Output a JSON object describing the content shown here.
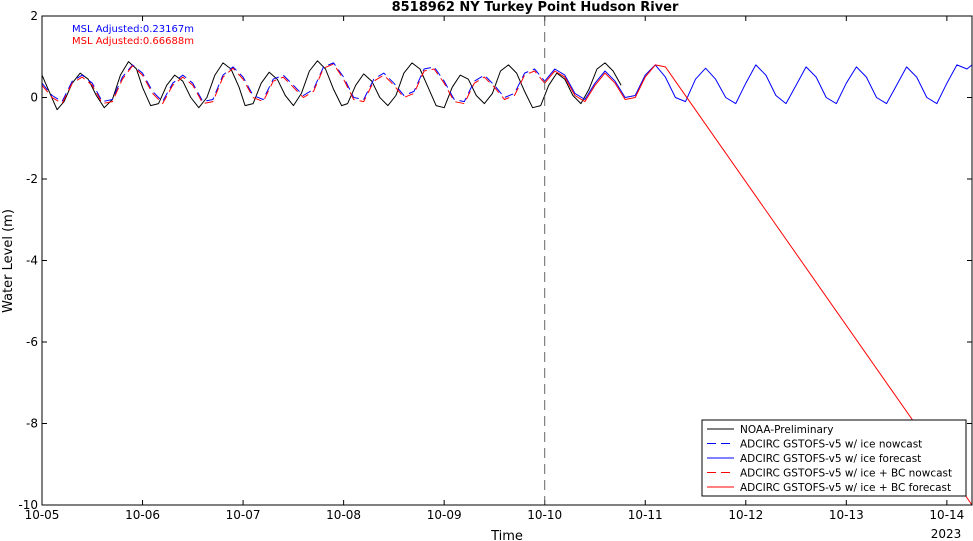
{
  "chart_data": {
    "type": "line",
    "title": "8518962 NY Turkey Point Hudson River",
    "xlabel": "Time",
    "ylabel": "Water Level (m)",
    "xlim": [
      0,
      9.25
    ],
    "ylim": [
      -10,
      2
    ],
    "x_ticks": [
      {
        "x": 0,
        "label": "10-05"
      },
      {
        "x": 1,
        "label": "10-06"
      },
      {
        "x": 2,
        "label": "10-07"
      },
      {
        "x": 3,
        "label": "10-08"
      },
      {
        "x": 4,
        "label": "10-09"
      },
      {
        "x": 5,
        "label": "10-10"
      },
      {
        "x": 6,
        "label": "10-11"
      },
      {
        "x": 7,
        "label": "10-12"
      },
      {
        "x": 8,
        "label": "10-13"
      },
      {
        "x": 9,
        "label": "10-14"
      }
    ],
    "x_year_label": "2023",
    "y_ticks": [
      2,
      0,
      -2,
      -4,
      -6,
      -8,
      -10
    ],
    "nowcast_divider_x": 5,
    "annotations": [
      {
        "text": "MSL Adjusted:0.23167m",
        "color": "#0000ff"
      },
      {
        "text": "MSL Adjusted:0.66688m",
        "color": "#ff0000"
      }
    ],
    "legend_position": "bottom-right",
    "series": [
      {
        "name": "NOAA-Preliminary",
        "color": "#000000",
        "dash": "solid",
        "x": [
          0.0,
          0.08,
          0.15,
          0.22,
          0.3,
          0.38,
          0.46,
          0.54,
          0.62,
          0.7,
          0.78,
          0.86,
          0.94,
          1.0,
          1.08,
          1.16,
          1.24,
          1.32,
          1.4,
          1.48,
          1.56,
          1.64,
          1.72,
          1.8,
          1.88,
          1.96,
          2.02,
          2.1,
          2.18,
          2.26,
          2.34,
          2.42,
          2.5,
          2.58,
          2.66,
          2.74,
          2.82,
          2.9,
          2.98,
          3.04,
          3.12,
          3.2,
          3.28,
          3.36,
          3.44,
          3.52,
          3.6,
          3.68,
          3.76,
          3.84,
          3.92,
          4.0,
          4.08,
          4.16,
          4.24,
          4.32,
          4.4,
          4.48,
          4.56,
          4.64,
          4.72,
          4.8,
          4.88,
          4.96,
          5.04,
          5.12,
          5.2,
          5.28,
          5.36,
          5.44,
          5.52,
          5.6,
          5.68,
          5.76
        ],
        "y": [
          0.55,
          0.1,
          -0.3,
          -0.1,
          0.35,
          0.6,
          0.45,
          0.05,
          -0.25,
          -0.05,
          0.55,
          0.88,
          0.7,
          0.25,
          -0.2,
          -0.15,
          0.3,
          0.55,
          0.4,
          0.0,
          -0.25,
          0.0,
          0.55,
          0.85,
          0.7,
          0.25,
          -0.2,
          -0.15,
          0.35,
          0.62,
          0.45,
          0.05,
          -0.2,
          0.1,
          0.65,
          0.9,
          0.7,
          0.2,
          -0.2,
          -0.15,
          0.3,
          0.58,
          0.4,
          0.0,
          -0.2,
          0.05,
          0.6,
          0.85,
          0.7,
          0.25,
          -0.2,
          -0.25,
          0.25,
          0.55,
          0.45,
          0.05,
          -0.15,
          0.1,
          0.65,
          0.8,
          0.6,
          0.15,
          -0.25,
          -0.2,
          0.3,
          0.6,
          0.45,
          0.05,
          -0.15,
          0.2,
          0.7,
          0.85,
          0.65,
          0.3
        ]
      },
      {
        "name": "ADCIRC GSTOFS-v5 w/ ice nowcast",
        "color": "#0000ff",
        "dash": "dashed",
        "x": [
          0.0,
          0.1,
          0.2,
          0.3,
          0.4,
          0.5,
          0.6,
          0.7,
          0.8,
          0.9,
          1.0,
          1.1,
          1.2,
          1.3,
          1.4,
          1.5,
          1.6,
          1.7,
          1.8,
          1.9,
          2.0,
          2.1,
          2.2,
          2.3,
          2.4,
          2.5,
          2.6,
          2.7,
          2.8,
          2.9,
          3.0,
          3.1,
          3.2,
          3.3,
          3.4,
          3.5,
          3.6,
          3.7,
          3.8,
          3.9,
          4.0,
          4.1,
          4.2,
          4.3,
          4.4,
          4.5,
          4.6,
          4.7,
          4.8,
          4.9,
          5.0
        ],
        "y": [
          0.35,
          0.05,
          -0.1,
          0.4,
          0.55,
          0.35,
          -0.1,
          -0.05,
          0.5,
          0.8,
          0.6,
          0.15,
          -0.1,
          0.35,
          0.55,
          0.35,
          -0.1,
          -0.05,
          0.55,
          0.75,
          0.5,
          0.05,
          -0.05,
          0.45,
          0.55,
          0.3,
          0.05,
          0.2,
          0.75,
          0.85,
          0.5,
          0.0,
          -0.05,
          0.45,
          0.6,
          0.35,
          0.05,
          0.15,
          0.7,
          0.75,
          0.4,
          -0.05,
          -0.1,
          0.4,
          0.55,
          0.3,
          0.0,
          0.1,
          0.6,
          0.7,
          0.4
        ]
      },
      {
        "name": "ADCIRC GSTOFS-v5 w/ ice forecast",
        "color": "#0000ff",
        "dash": "solid",
        "x": [
          5.0,
          5.1,
          5.2,
          5.3,
          5.4,
          5.5,
          5.6,
          5.7,
          5.8,
          5.9,
          6.0,
          6.1,
          6.2,
          6.3,
          6.4,
          6.5,
          6.6,
          6.7,
          6.8,
          6.9,
          7.0,
          7.1,
          7.2,
          7.3,
          7.4,
          7.5,
          7.6,
          7.7,
          7.8,
          7.9,
          8.0,
          8.1,
          8.2,
          8.3,
          8.4,
          8.5,
          8.6,
          8.7,
          8.8,
          8.9,
          9.0,
          9.1,
          9.2,
          9.25
        ],
        "y": [
          0.4,
          0.7,
          0.55,
          0.1,
          -0.05,
          0.35,
          0.65,
          0.4,
          0.0,
          0.05,
          0.55,
          0.8,
          0.5,
          0.0,
          -0.1,
          0.45,
          0.72,
          0.45,
          0.0,
          -0.15,
          0.35,
          0.8,
          0.55,
          0.05,
          -0.15,
          0.3,
          0.75,
          0.5,
          0.0,
          -0.15,
          0.35,
          0.75,
          0.5,
          0.0,
          -0.15,
          0.3,
          0.75,
          0.5,
          0.0,
          -0.15,
          0.35,
          0.8,
          0.7,
          0.8
        ]
      },
      {
        "name": "ADCIRC GSTOFS-v5 w/ ice + BC nowcast",
        "color": "#ff0000",
        "dash": "dashed",
        "x": [
          0.0,
          0.1,
          0.2,
          0.3,
          0.4,
          0.5,
          0.6,
          0.7,
          0.8,
          0.9,
          1.0,
          1.1,
          1.2,
          1.3,
          1.4,
          1.5,
          1.6,
          1.7,
          1.8,
          1.9,
          2.0,
          2.1,
          2.2,
          2.3,
          2.4,
          2.5,
          2.6,
          2.7,
          2.8,
          2.9,
          3.0,
          3.1,
          3.2,
          3.3,
          3.4,
          3.5,
          3.6,
          3.7,
          3.8,
          3.9,
          4.0,
          4.1,
          4.2,
          4.3,
          4.4,
          4.5,
          4.6,
          4.7,
          4.8,
          4.9,
          5.0
        ],
        "y": [
          0.3,
          0.0,
          -0.15,
          0.35,
          0.5,
          0.3,
          -0.15,
          -0.1,
          0.45,
          0.78,
          0.55,
          0.1,
          -0.15,
          0.3,
          0.5,
          0.3,
          -0.15,
          -0.1,
          0.5,
          0.72,
          0.45,
          0.0,
          -0.1,
          0.4,
          0.5,
          0.25,
          0.0,
          0.15,
          0.72,
          0.82,
          0.45,
          -0.05,
          -0.1,
          0.4,
          0.55,
          0.3,
          0.0,
          0.1,
          0.65,
          0.7,
          0.35,
          -0.1,
          -0.15,
          0.35,
          0.5,
          0.25,
          -0.05,
          0.05,
          0.55,
          0.65,
          0.35
        ]
      },
      {
        "name": "ADCIRC GSTOFS-v5 w/ ice + BC forecast",
        "color": "#ff0000",
        "dash": "solid",
        "x": [
          5.0,
          5.1,
          5.2,
          5.3,
          5.4,
          5.5,
          5.6,
          5.7,
          5.8,
          5.9,
          6.0,
          6.1,
          6.2,
          6.3,
          9.25
        ],
        "y": [
          0.35,
          0.65,
          0.5,
          0.05,
          -0.1,
          0.3,
          0.6,
          0.35,
          -0.05,
          0.0,
          0.5,
          0.8,
          0.75,
          0.4,
          -10.0
        ]
      }
    ]
  }
}
